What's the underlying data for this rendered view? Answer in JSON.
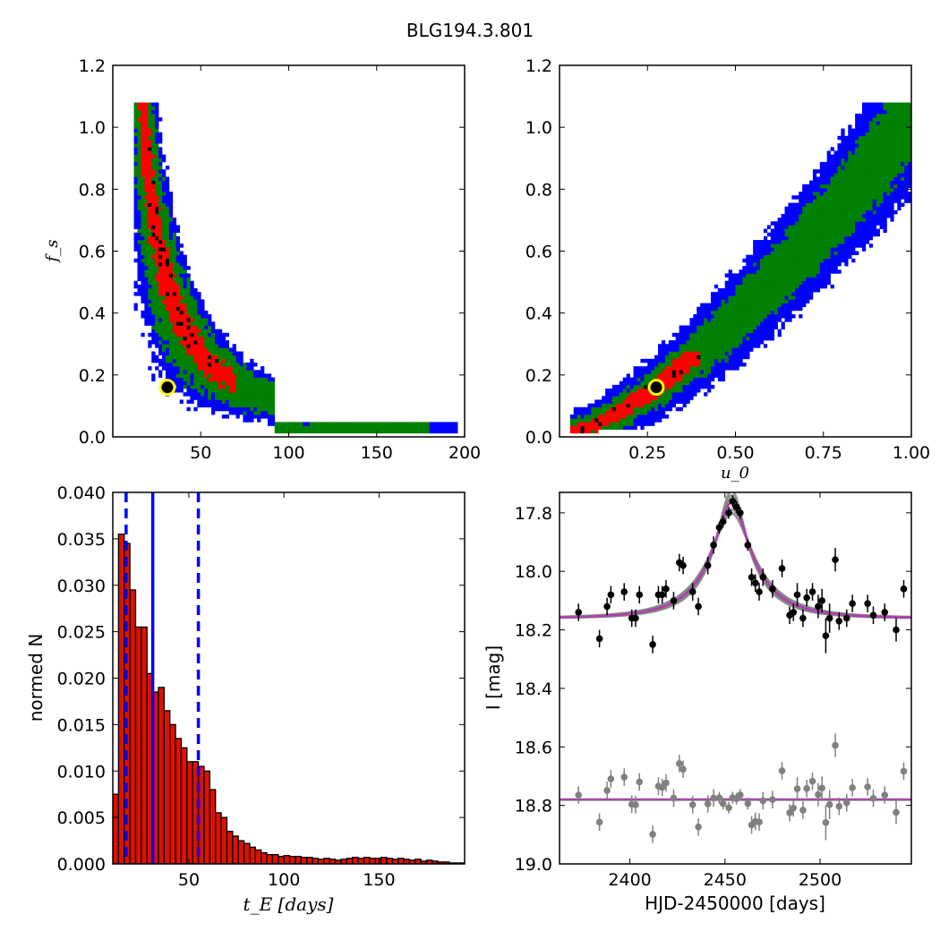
{
  "figure": {
    "title": "BLG194.3.801"
  },
  "colors": {
    "blue": "#0000ff",
    "green": "#008000",
    "red": "#ff0000",
    "black": "#000000",
    "best_fit_marker": "#ffff00",
    "hist_bar": "#dd1100",
    "dashed_line": "#0000ff",
    "model_line": "#b040b0",
    "residual_grey": "#808080"
  },
  "chart_data": [
    {
      "id": "fs_vs_tE",
      "type": "heatmap",
      "title": "",
      "xlabel": "",
      "ylabel": "f_s",
      "xlim": [
        0,
        200
      ],
      "ylim": [
        0,
        1.2
      ],
      "xticks": [
        "50",
        "100",
        "150",
        "200"
      ],
      "yticks": [
        "0.0",
        "0.2",
        "0.4",
        "0.6",
        "0.8",
        "1.0",
        "1.2"
      ],
      "legend": "none",
      "description_levels": [
        "blue",
        "green",
        "red",
        "black"
      ],
      "curve_constant": 5.0,
      "best_fit": {
        "tE": 31,
        "fs": 0.16
      }
    },
    {
      "id": "fs_vs_u0",
      "type": "heatmap",
      "title": "",
      "xlabel": "u_0",
      "ylabel": "",
      "xlim": [
        0,
        1.0
      ],
      "ylim": [
        0,
        1.2
      ],
      "xticks": [
        "0.25",
        "0.50",
        "0.75",
        "1.00"
      ],
      "yticks": [
        "0.0",
        "0.2",
        "0.4",
        "0.6",
        "0.8",
        "1.0",
        "1.2"
      ],
      "legend": "none",
      "best_fit": {
        "u0": 0.275,
        "fs": 0.16
      }
    },
    {
      "id": "tE_histogram",
      "type": "bar",
      "title": "",
      "xlabel": "t_E  [days]",
      "ylabel": "normed N",
      "xlim": [
        10,
        195
      ],
      "ylim": [
        0,
        0.04
      ],
      "xticks": [
        "50",
        "100",
        "150"
      ],
      "yticks": [
        "0.000",
        "0.005",
        "0.010",
        "0.015",
        "0.020",
        "0.025",
        "0.030",
        "0.035",
        "0.040"
      ],
      "bin_start": 10,
      "bin_width": 3,
      "values": [
        0.0075,
        0.0355,
        0.0345,
        0.0295,
        0.0255,
        0.0255,
        0.0205,
        0.0185,
        0.019,
        0.0165,
        0.015,
        0.0135,
        0.0125,
        0.011,
        0.011,
        0.0105,
        0.01,
        0.008,
        0.0055,
        0.005,
        0.0035,
        0.003,
        0.0025,
        0.0022,
        0.0018,
        0.0015,
        0.0012,
        0.001,
        0.001,
        0.0008,
        0.0009,
        0.0008,
        0.0008,
        0.0007,
        0.0007,
        0.0006,
        0.0005,
        0.0006,
        0.0005,
        0.0004,
        0.0005,
        0.0006,
        0.0007,
        0.0006,
        0.0007,
        0.0006,
        0.0006,
        0.0007,
        0.0006,
        0.0005,
        0.0006,
        0.0005,
        0.0004,
        0.0005,
        0.0003,
        0.0004,
        0.0003,
        0.0002,
        0.0002,
        0.0001,
        0.0001,
        0.0001
      ],
      "median": 31,
      "lower_bound": 17,
      "upper_bound": 55
    },
    {
      "id": "light_curve",
      "type": "scatter",
      "title": "",
      "xlabel": "HJD-2450000 [days]",
      "ylabel": "I [mag]",
      "xlim": [
        2363,
        2548
      ],
      "ylim": [
        19.0,
        17.73
      ],
      "xticks": [
        "2400",
        "2450",
        "2500"
      ],
      "yticks": [
        "17.8",
        "18.0",
        "18.2",
        "18.4",
        "18.6",
        "18.8",
        "19.0"
      ],
      "model": {
        "t0": 2453.5,
        "u0": 0.275,
        "tE": 31,
        "fs": 0.16,
        "baseline": 18.16,
        "residual_baseline": 18.78
      },
      "points": [
        [
          2373,
          18.14,
          0.03
        ],
        [
          2384,
          18.23,
          0.03
        ],
        [
          2388,
          18.12,
          0.03
        ],
        [
          2390,
          18.08,
          0.03
        ],
        [
          2397,
          18.07,
          0.03
        ],
        [
          2401,
          18.16,
          0.03
        ],
        [
          2403,
          18.16,
          0.03
        ],
        [
          2405,
          18.08,
          0.03
        ],
        [
          2412,
          18.25,
          0.03
        ],
        [
          2415,
          18.08,
          0.03
        ],
        [
          2417,
          18.08,
          0.03
        ],
        [
          2419,
          18.06,
          0.03
        ],
        [
          2423,
          18.1,
          0.03
        ],
        [
          2426,
          17.97,
          0.03
        ],
        [
          2428,
          17.98,
          0.03
        ],
        [
          2433,
          18.07,
          0.03
        ],
        [
          2436,
          18.12,
          0.03
        ],
        [
          2441,
          17.98,
          0.03
        ],
        [
          2444,
          17.91,
          0.03
        ],
        [
          2447,
          17.85,
          0.02
        ],
        [
          2449,
          17.83,
          0.02
        ],
        [
          2452,
          17.8,
          0.02
        ],
        [
          2454,
          17.76,
          0.02
        ],
        [
          2456,
          17.78,
          0.02
        ],
        [
          2458,
          17.8,
          0.02
        ],
        [
          2462,
          17.91,
          0.02
        ],
        [
          2464,
          18.02,
          0.03
        ],
        [
          2466,
          18.04,
          0.03
        ],
        [
          2468,
          18.07,
          0.03
        ],
        [
          2470,
          18.02,
          0.03
        ],
        [
          2475,
          18.06,
          0.03
        ],
        [
          2480,
          17.99,
          0.03
        ],
        [
          2484,
          18.15,
          0.03
        ],
        [
          2486,
          18.14,
          0.03
        ],
        [
          2488,
          18.08,
          0.04
        ],
        [
          2491,
          18.16,
          0.03
        ],
        [
          2493,
          18.09,
          0.03
        ],
        [
          2496,
          18.07,
          0.03
        ],
        [
          2499,
          18.12,
          0.04
        ],
        [
          2501,
          18.1,
          0.04
        ],
        [
          2503,
          18.22,
          0.06
        ],
        [
          2505,
          18.16,
          0.05
        ],
        [
          2508,
          17.96,
          0.04
        ],
        [
          2510,
          18.17,
          0.03
        ],
        [
          2514,
          18.16,
          0.03
        ],
        [
          2517,
          18.11,
          0.03
        ],
        [
          2525,
          18.11,
          0.03
        ],
        [
          2528,
          18.15,
          0.03
        ],
        [
          2534,
          18.14,
          0.03
        ],
        [
          2540,
          18.2,
          0.04
        ],
        [
          2544,
          18.06,
          0.03
        ]
      ]
    }
  ]
}
